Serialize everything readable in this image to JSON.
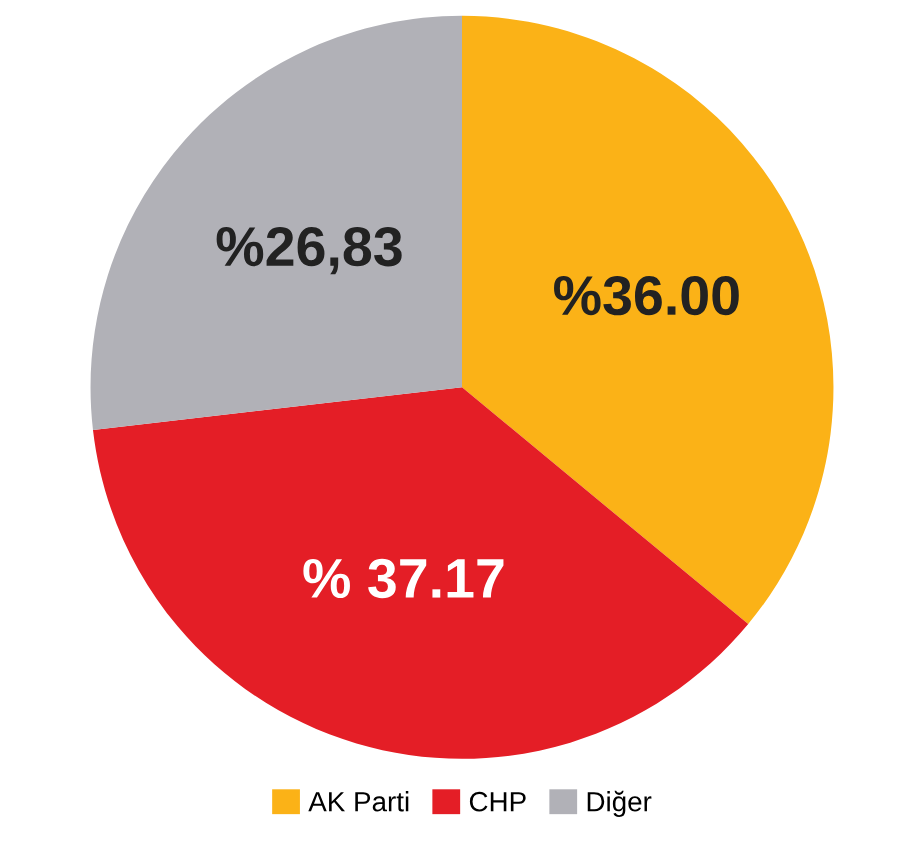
{
  "chart_data": {
    "type": "pie",
    "categories": [
      "AK Parti",
      "CHP",
      "Diğer"
    ],
    "values": [
      36.0,
      37.17,
      26.83
    ],
    "colors": [
      "#fbb217",
      "#e41e26",
      "#b1b1b7"
    ],
    "value_labels": [
      "%36.00",
      "% 37.17",
      "%26,83"
    ],
    "legend": "bottom"
  }
}
